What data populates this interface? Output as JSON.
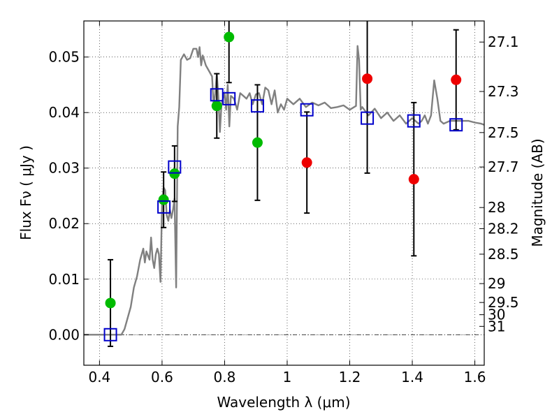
{
  "chart_data": {
    "type": "scatter",
    "xlabel": "Wavelength  λ (μm)",
    "ylabel": "Flux  Fν  ( μJy )",
    "y2label": "Magnitude (AB)",
    "xlim": [
      0.35,
      1.63
    ],
    "ylim": [
      -0.0055,
      0.0565
    ],
    "grid": true,
    "x_ticks": [
      0.4,
      0.6,
      0.8,
      1.0,
      1.2,
      1.4,
      1.6
    ],
    "x_tick_labels": [
      "0.4",
      "0.6",
      "0.8",
      "1",
      "1.2",
      "1.4",
      "1.6"
    ],
    "y_ticks": [
      0.0,
      0.01,
      0.02,
      0.03,
      0.04,
      0.05
    ],
    "y_tick_labels": [
      "0.00",
      "0.01",
      "0.02",
      "0.03",
      "0.04",
      "0.05"
    ],
    "y2_ticks": [
      {
        "label": "27.1",
        "flux": 0.0527
      },
      {
        "label": "27.3",
        "flux": 0.0438
      },
      {
        "label": "27.5",
        "flux": 0.0364
      },
      {
        "label": "27.7",
        "flux": 0.0302
      },
      {
        "label": "28",
        "flux": 0.0229
      },
      {
        "label": "28.2",
        "flux": 0.0191
      },
      {
        "label": "28.5",
        "flux": 0.0145
      },
      {
        "label": "29",
        "flux": 0.0092
      },
      {
        "label": "29.5",
        "flux": 0.0058
      },
      {
        "label": "30",
        "flux": 0.0036
      },
      {
        "label": "31",
        "flux": 0.0015
      }
    ],
    "series": [
      {
        "kind": "line",
        "color": "#808080",
        "x": [
          0.35,
          0.47,
          0.48,
          0.5,
          0.51,
          0.52,
          0.53,
          0.54,
          0.545,
          0.55,
          0.56,
          0.565,
          0.57,
          0.575,
          0.58,
          0.585,
          0.59,
          0.595,
          0.6,
          0.605,
          0.61,
          0.615,
          0.62,
          0.625,
          0.63,
          0.635,
          0.64,
          0.645,
          0.65,
          0.655,
          0.66,
          0.67,
          0.68,
          0.69,
          0.7,
          0.71,
          0.715,
          0.72,
          0.725,
          0.73,
          0.74,
          0.75,
          0.76,
          0.765,
          0.77,
          0.775,
          0.78,
          0.785,
          0.79,
          0.8,
          0.805,
          0.81,
          0.815,
          0.82,
          0.83,
          0.84,
          0.85,
          0.86,
          0.87,
          0.88,
          0.89,
          0.9,
          0.91,
          0.92,
          0.93,
          0.94,
          0.95,
          0.96,
          0.97,
          0.98,
          0.99,
          1.0,
          1.02,
          1.04,
          1.06,
          1.08,
          1.1,
          1.12,
          1.14,
          1.16,
          1.18,
          1.2,
          1.22,
          1.225,
          1.23,
          1.235,
          1.24,
          1.26,
          1.28,
          1.3,
          1.32,
          1.34,
          1.36,
          1.38,
          1.4,
          1.42,
          1.43,
          1.44,
          1.45,
          1.46,
          1.47,
          1.48,
          1.49,
          1.5,
          1.52,
          1.54,
          1.56,
          1.58,
          1.6,
          1.62,
          1.63
        ],
        "y": [
          0.0,
          0.0,
          0.001,
          0.005,
          0.0085,
          0.0105,
          0.0135,
          0.0155,
          0.013,
          0.015,
          0.0135,
          0.0175,
          0.0135,
          0.012,
          0.0145,
          0.0155,
          0.0145,
          0.0095,
          0.0235,
          0.0265,
          0.026,
          0.0215,
          0.0205,
          0.0225,
          0.021,
          0.0225,
          0.0245,
          0.0085,
          0.0375,
          0.041,
          0.0495,
          0.0505,
          0.0495,
          0.0498,
          0.0515,
          0.0515,
          0.05,
          0.0518,
          0.0485,
          0.0503,
          0.0485,
          0.0475,
          0.0465,
          0.041,
          0.0435,
          0.047,
          0.043,
          0.0365,
          0.0415,
          0.0435,
          0.0405,
          0.045,
          0.0375,
          0.043,
          0.0425,
          0.0405,
          0.0435,
          0.043,
          0.0425,
          0.0435,
          0.0415,
          0.0433,
          0.0435,
          0.0415,
          0.0445,
          0.044,
          0.0415,
          0.044,
          0.04,
          0.0415,
          0.0405,
          0.0425,
          0.0415,
          0.0425,
          0.041,
          0.0418,
          0.0413,
          0.0418,
          0.0408,
          0.041,
          0.0413,
          0.0405,
          0.0412,
          0.052,
          0.0495,
          0.0405,
          0.041,
          0.0395,
          0.0407,
          0.039,
          0.04,
          0.0385,
          0.0395,
          0.038,
          0.039,
          0.038,
          0.0385,
          0.0395,
          0.038,
          0.0395,
          0.0458,
          0.0425,
          0.0385,
          0.038,
          0.0385,
          0.0385,
          0.0385,
          0.0385,
          0.0382,
          0.038,
          0.0378
        ]
      },
      {
        "kind": "points",
        "marker": "circle",
        "color": "#00bb00",
        "x": [
          0.435,
          0.605,
          0.64,
          0.775,
          0.814,
          0.905
        ],
        "y": [
          0.0057,
          0.0243,
          0.029,
          0.0412,
          0.0536,
          0.0346
        ],
        "yerr": [
          0.0078,
          0.005,
          0.005,
          0.0058,
          0.0082,
          0.0104
        ]
      },
      {
        "kind": "points",
        "marker": "circle",
        "color": "#ee0000",
        "x": [
          1.063,
          1.256,
          1.405,
          1.54
        ],
        "y": [
          0.031,
          0.0461,
          0.028,
          0.0459
        ],
        "yerr": [
          0.0091,
          0.017,
          0.0138,
          0.009
        ]
      },
      {
        "kind": "points",
        "marker": "square",
        "color": "#0000cc",
        "x": [
          0.435,
          0.606,
          0.64,
          0.775,
          0.814,
          0.905,
          1.063,
          1.256,
          1.405,
          1.54
        ],
        "y": [
          0.0,
          0.023,
          0.0302,
          0.0432,
          0.0425,
          0.0412,
          0.0405,
          0.039,
          0.0385,
          0.0378
        ]
      }
    ]
  }
}
